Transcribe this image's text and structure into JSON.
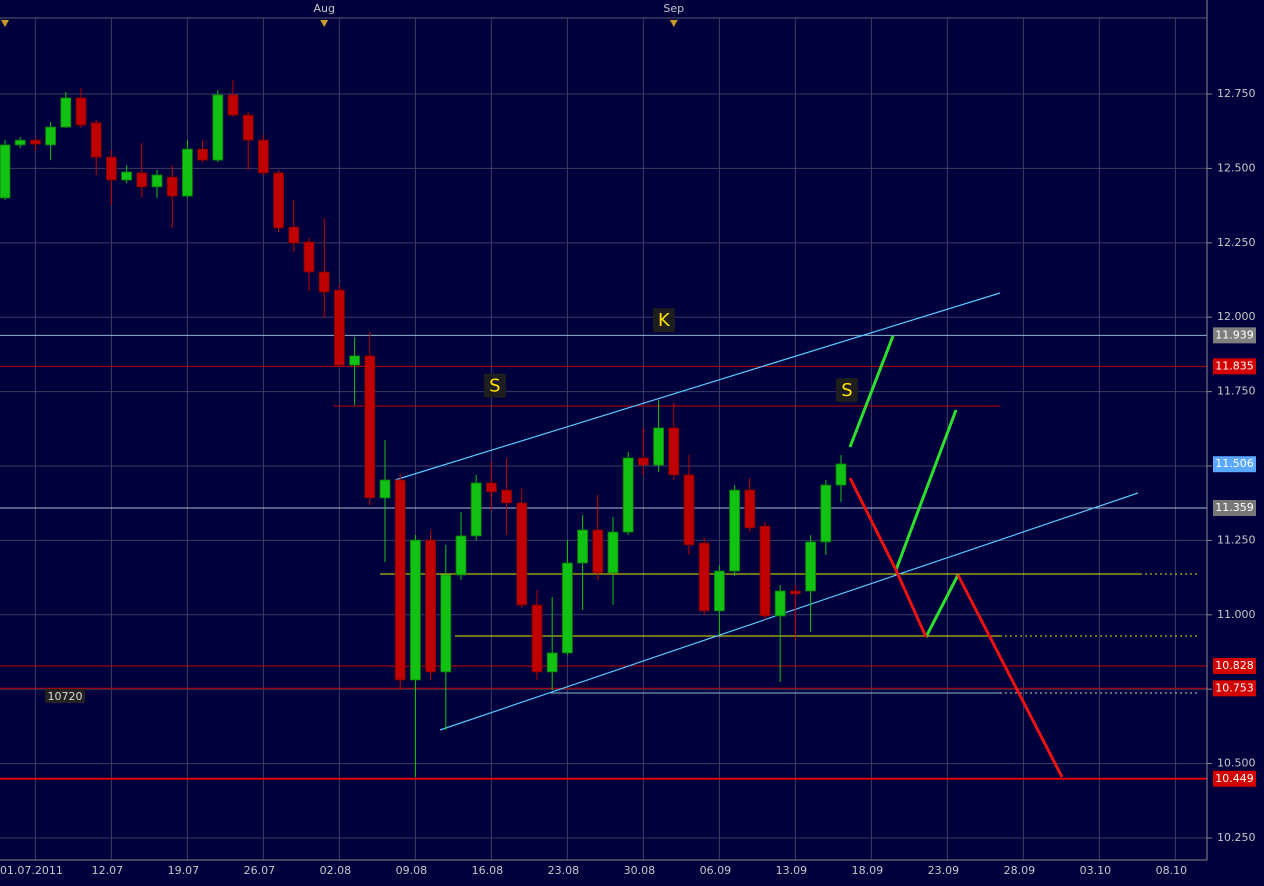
{
  "chart_data": {
    "type": "candlestick",
    "up_color": "#12c212",
    "down_color": "#c00000",
    "open": [
      12.401,
      12.579,
      12.595,
      12.579,
      12.639,
      12.737,
      12.653,
      12.538,
      12.461,
      12.485,
      12.438,
      12.471,
      12.407,
      12.565,
      12.528,
      12.747,
      12.679,
      12.595,
      12.485,
      12.303,
      12.253,
      12.152,
      12.091,
      11.839,
      11.87,
      11.393,
      11.453,
      10.781,
      11.251,
      10.808,
      11.134,
      11.265,
      11.443,
      11.419,
      11.376,
      11.033,
      10.808,
      10.872,
      11.174,
      11.285,
      11.141,
      11.278,
      11.527,
      11.503,
      11.628,
      11.47,
      11.241,
      11.013,
      11.147,
      11.419,
      11.298,
      10.996,
      11.08,
      11.08,
      11.245,
      11.436
    ],
    "high": [
      12.595,
      12.606,
      12.602,
      12.656,
      12.757,
      12.77,
      12.663,
      12.562,
      12.511,
      12.585,
      12.495,
      12.511,
      12.595,
      12.595,
      12.763,
      12.797,
      12.69,
      12.612,
      12.495,
      12.394,
      12.266,
      12.333,
      12.108,
      11.933,
      11.95,
      11.587,
      11.473,
      11.268,
      11.285,
      11.235,
      11.346,
      11.47,
      11.514,
      11.527,
      11.426,
      11.083,
      11.06,
      11.251,
      11.335,
      11.403,
      11.329,
      11.547,
      11.628,
      11.722,
      11.712,
      11.537,
      11.258,
      11.167,
      11.436,
      11.46,
      11.312,
      11.1,
      11.1,
      11.268,
      11.453,
      11.537
    ],
    "low": [
      12.394,
      12.569,
      12.562,
      12.528,
      12.636,
      12.636,
      12.478,
      12.377,
      12.451,
      12.404,
      12.401,
      12.3,
      12.401,
      12.518,
      12.521,
      12.673,
      12.495,
      12.478,
      12.286,
      12.219,
      12.088,
      11.997,
      11.833,
      11.705,
      11.369,
      11.177,
      10.747,
      10.455,
      10.781,
      10.613,
      11.117,
      11.251,
      11.352,
      11.268,
      11.023,
      10.781,
      10.747,
      10.865,
      11.016,
      11.117,
      11.033,
      11.268,
      11.47,
      11.48,
      11.453,
      11.201,
      10.999,
      10.932,
      11.131,
      11.278,
      10.983,
      10.774,
      10.915,
      10.942,
      11.201,
      11.379
    ],
    "close": [
      12.579,
      12.595,
      12.582,
      12.639,
      12.737,
      12.646,
      12.538,
      12.461,
      12.488,
      12.438,
      12.478,
      12.407,
      12.565,
      12.528,
      12.747,
      12.679,
      12.595,
      12.485,
      12.3,
      12.249,
      12.152,
      12.085,
      11.839,
      11.87,
      11.393,
      11.453,
      10.781,
      11.251,
      10.808,
      11.134,
      11.265,
      11.443,
      11.413,
      11.376,
      11.033,
      10.808,
      10.872,
      11.174,
      11.285,
      11.141,
      11.278,
      11.527,
      11.503,
      11.628,
      11.47,
      11.235,
      11.013,
      11.147,
      11.419,
      11.292,
      10.996,
      11.08,
      11.07,
      11.245,
      11.436,
      11.507
    ],
    "xlim": [
      -0.33,
      79.08
    ],
    "ylim": [
      10.176,
      13.066
    ],
    "xticks": [
      {
        "value": 2,
        "label": "01.07.2011"
      },
      {
        "value": 7,
        "label": "12.07"
      },
      {
        "value": 12,
        "label": "19.07"
      },
      {
        "value": 17,
        "label": "26.07"
      },
      {
        "value": 22,
        "label": "02.08"
      },
      {
        "value": 27,
        "label": "09.08"
      },
      {
        "value": 32,
        "label": "16.08"
      },
      {
        "value": 37,
        "label": "23.08"
      },
      {
        "value": 42,
        "label": "30.08"
      },
      {
        "value": 47,
        "label": "06.09"
      },
      {
        "value": 52,
        "label": "13.09"
      },
      {
        "value": 57,
        "label": "18.09"
      },
      {
        "value": 62,
        "label": "23.09"
      },
      {
        "value": 67,
        "label": "28.09"
      },
      {
        "value": 72,
        "label": "03.10"
      },
      {
        "value": 77,
        "label": "08.10"
      }
    ],
    "month_ticks": [
      {
        "value": 21,
        "label": "Aug"
      },
      {
        "value": 44,
        "label": "Sep"
      }
    ],
    "yticks": [
      {
        "value": 10.25,
        "label": "10.250"
      },
      {
        "value": 10.5,
        "label": "10.500"
      },
      {
        "value": 10.75,
        "label": "10.750"
      },
      {
        "value": 11,
        "label": "11.000"
      },
      {
        "value": 11.25,
        "label": "11.250"
      },
      {
        "value": 11.5,
        "label": "11.500"
      },
      {
        "value": 11.75,
        "label": "11.750"
      },
      {
        "value": 12,
        "label": "12.000"
      },
      {
        "value": 12.25,
        "label": "12.250"
      },
      {
        "value": 12.5,
        "label": "12.500"
      },
      {
        "value": 12.75,
        "label": "12.750"
      }
    ],
    "grid": true,
    "levels": [
      {
        "value": 11.939,
        "color": "#8fb4cf",
        "box": "#7f7f7f",
        "show_line": true
      },
      {
        "value": 11.835,
        "color": "#c00000",
        "box": "#d40000",
        "show_line": true
      },
      {
        "value": 11.506,
        "color": "#5aa8ff",
        "box": "#5aa8ff",
        "show_line": false
      },
      {
        "value": 11.359,
        "color": "#a9bfd4",
        "box": "#777777",
        "show_line": true
      },
      {
        "value": 10.828,
        "color": "#c00000",
        "box": "#d40000",
        "show_line": true
      },
      {
        "value": 10.753,
        "color": "#c00000",
        "box": "#d40000",
        "show_line": true
      },
      {
        "value": 10.449,
        "color": "#e00000",
        "box": "#d40000",
        "show_line": true
      }
    ],
    "annotations": [
      {
        "text": "K",
        "x": 43.35,
        "y": 11.99
      },
      {
        "text": "S",
        "x": 32.23,
        "y": 11.77
      },
      {
        "text": "S",
        "x": 55.39,
        "y": 11.755
      },
      {
        "text": "10720",
        "x": 3.95,
        "y": 10.727
      }
    ]
  }
}
